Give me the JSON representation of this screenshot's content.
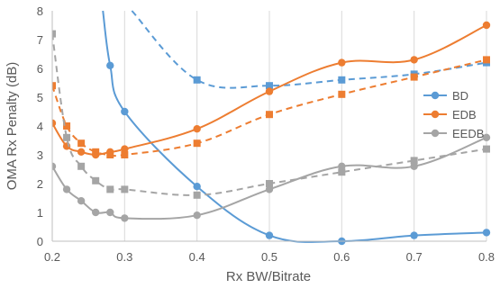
{
  "chart_data": {
    "type": "line",
    "title": "",
    "xlabel": "Rx BW/Bitrate",
    "ylabel": "OMA Rx Penalty (dB)",
    "xlim": [
      0.2,
      0.8
    ],
    "ylim": [
      0,
      8
    ],
    "x_ticks": [
      0.2,
      0.3,
      0.4,
      0.5,
      0.6,
      0.7,
      0.8
    ],
    "x_tick_labels": [
      "0.2",
      "0.3",
      "0.4",
      "0.5",
      "0.6",
      "0.7",
      "0.8"
    ],
    "y_ticks": [
      0,
      1,
      2,
      3,
      4,
      5,
      6,
      7,
      8
    ],
    "y_tick_labels": [
      "0",
      "1",
      "2",
      "3",
      "4",
      "5",
      "6",
      "7",
      "8"
    ],
    "grid": "vertical",
    "legend": "right",
    "series": [
      {
        "name": "BD",
        "color": "#5B9BD5",
        "solid": {
          "x": [
            0.28,
            0.3,
            0.4,
            0.5,
            0.6,
            0.7,
            0.8
          ],
          "y": [
            6.1,
            4.5,
            1.9,
            0.2,
            0.0,
            0.2,
            0.3
          ],
          "lead_in": [
            0.27,
            8.0
          ]
        },
        "dashed": {
          "x": [
            0.4,
            0.5,
            0.6,
            0.7,
            0.8
          ],
          "y": [
            5.6,
            5.4,
            5.6,
            5.8,
            6.2
          ],
          "lead_in": [
            0.31,
            8.0
          ]
        }
      },
      {
        "name": "EDB",
        "color": "#ED7D31",
        "solid": {
          "x": [
            0.2,
            0.22,
            0.24,
            0.26,
            0.28,
            0.3,
            0.4,
            0.5,
            0.6,
            0.7,
            0.8
          ],
          "y": [
            4.1,
            3.3,
            3.1,
            3.0,
            3.1,
            3.2,
            3.9,
            5.2,
            6.2,
            6.3,
            7.5
          ]
        },
        "dashed": {
          "x": [
            0.2,
            0.22,
            0.24,
            0.26,
            0.28,
            0.3,
            0.4,
            0.5,
            0.6,
            0.7,
            0.8
          ],
          "y": [
            5.4,
            4.0,
            3.4,
            3.1,
            3.0,
            3.0,
            3.4,
            4.4,
            5.1,
            5.7,
            6.3
          ]
        }
      },
      {
        "name": "EEDB",
        "color": "#A5A5A5",
        "solid": {
          "x": [
            0.2,
            0.22,
            0.24,
            0.26,
            0.28,
            0.3,
            0.4,
            0.5,
            0.6,
            0.7,
            0.8
          ],
          "y": [
            2.6,
            1.8,
            1.4,
            1.0,
            1.0,
            0.8,
            0.9,
            1.8,
            2.6,
            2.6,
            3.6
          ]
        },
        "dashed": {
          "x": [
            0.2,
            0.22,
            0.24,
            0.26,
            0.28,
            0.3,
            0.4,
            0.5,
            0.6,
            0.7,
            0.8
          ],
          "y": [
            7.2,
            3.6,
            2.6,
            2.1,
            1.8,
            1.8,
            1.6,
            2.0,
            2.4,
            2.8,
            3.2
          ]
        }
      }
    ]
  }
}
